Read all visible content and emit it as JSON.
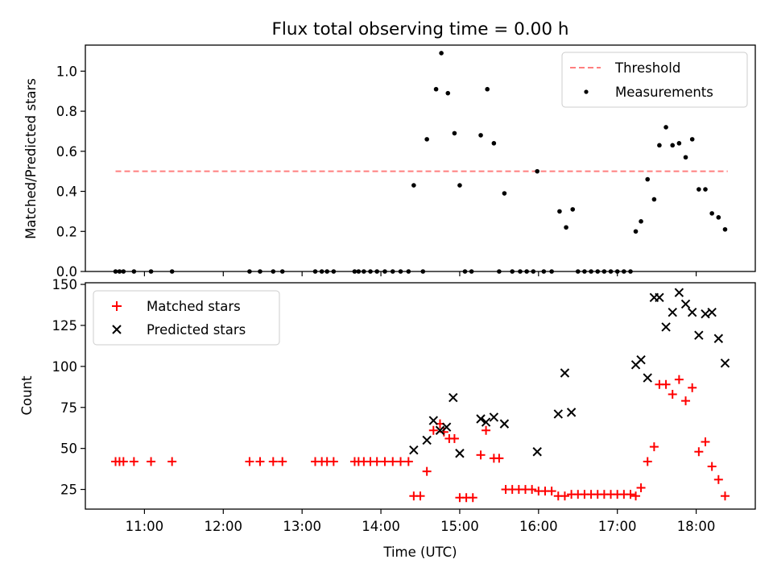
{
  "title": "Flux total observing time = 0.00 h",
  "colors": {
    "threshold": "#ff7f7f",
    "measurement": "#000000",
    "matched": "#ff0000",
    "predicted": "#000000"
  },
  "chart_data": [
    {
      "type": "scatter",
      "panel": "top",
      "ylabel": "Matched/Predicted stars",
      "xlabel": "",
      "xlim": [
        "10:15",
        "18:45"
      ],
      "ylim": [
        0,
        1.13
      ],
      "yticks": [
        "0.0",
        "0.2",
        "0.4",
        "0.6",
        "0.8",
        "1.0"
      ],
      "xticks": [
        "11:00",
        "12:00",
        "13:00",
        "14:00",
        "15:00",
        "16:00",
        "17:00",
        "18:00"
      ],
      "legend": {
        "position": "top-right",
        "entries": [
          "Threshold",
          "Measurements"
        ]
      },
      "threshold": {
        "name": "Threshold",
        "y": 0.5,
        "x_range": [
          "10:38",
          "18:24"
        ]
      },
      "series": [
        {
          "name": "Measurements",
          "points": [
            [
              "10:38",
              0
            ],
            [
              "10:41",
              0
            ],
            [
              "10:44",
              0
            ],
            [
              "10:52",
              0
            ],
            [
              "11:05",
              0
            ],
            [
              "11:21",
              0
            ],
            [
              "12:20",
              0
            ],
            [
              "12:28",
              0
            ],
            [
              "12:38",
              0
            ],
            [
              "12:45",
              0
            ],
            [
              "13:10",
              0
            ],
            [
              "13:15",
              0
            ],
            [
              "13:19",
              0
            ],
            [
              "13:24",
              0
            ],
            [
              "13:40",
              0
            ],
            [
              "13:43",
              0
            ],
            [
              "13:47",
              0
            ],
            [
              "13:52",
              0
            ],
            [
              "13:57",
              0
            ],
            [
              "14:03",
              0
            ],
            [
              "14:09",
              0
            ],
            [
              "14:15",
              0
            ],
            [
              "14:21",
              0
            ],
            [
              "14:25",
              0.43
            ],
            [
              "14:32",
              0
            ],
            [
              "14:35",
              0.66
            ],
            [
              "14:42",
              0.91
            ],
            [
              "14:46",
              1.09
            ],
            [
              "14:51",
              0.89
            ],
            [
              "14:56",
              0.69
            ],
            [
              "15:00",
              0.43
            ],
            [
              "15:04",
              0
            ],
            [
              "15:09",
              0
            ],
            [
              "15:16",
              0.68
            ],
            [
              "15:21",
              0.91
            ],
            [
              "15:26",
              0.64
            ],
            [
              "15:30",
              0
            ],
            [
              "15:34",
              0.39
            ],
            [
              "15:40",
              0
            ],
            [
              "15:46",
              0
            ],
            [
              "15:51",
              0
            ],
            [
              "15:56",
              0
            ],
            [
              "15:59",
              0.5
            ],
            [
              "16:04",
              0
            ],
            [
              "16:10",
              0
            ],
            [
              "16:16",
              0.3
            ],
            [
              "16:21",
              0.22
            ],
            [
              "16:26",
              0.31
            ],
            [
              "16:30",
              0
            ],
            [
              "16:35",
              0
            ],
            [
              "16:40",
              0
            ],
            [
              "16:45",
              0
            ],
            [
              "16:50",
              0
            ],
            [
              "16:55",
              0
            ],
            [
              "17:00",
              0
            ],
            [
              "17:05",
              0
            ],
            [
              "17:10",
              0
            ],
            [
              "17:14",
              0.2
            ],
            [
              "17:18",
              0.25
            ],
            [
              "17:23",
              0.46
            ],
            [
              "17:28",
              0.36
            ],
            [
              "17:32",
              0.63
            ],
            [
              "17:37",
              0.72
            ],
            [
              "17:42",
              0.63
            ],
            [
              "17:47",
              0.64
            ],
            [
              "17:52",
              0.57
            ],
            [
              "17:57",
              0.66
            ],
            [
              "18:02",
              0.41
            ],
            [
              "18:07",
              0.41
            ],
            [
              "18:12",
              0.29
            ],
            [
              "18:17",
              0.27
            ],
            [
              "18:22",
              0.21
            ]
          ]
        }
      ]
    },
    {
      "type": "scatter",
      "panel": "bottom",
      "ylabel": "Count",
      "xlabel": "Time (UTC)",
      "xlim": [
        "10:15",
        "18:45"
      ],
      "ylim": [
        13,
        151
      ],
      "yticks": [
        "25",
        "50",
        "75",
        "100",
        "125",
        "150"
      ],
      "xticks": [
        "11:00",
        "12:00",
        "13:00",
        "14:00",
        "15:00",
        "16:00",
        "17:00",
        "18:00"
      ],
      "legend": {
        "position": "top-left",
        "entries": [
          "Matched stars",
          "Predicted stars"
        ]
      },
      "series": [
        {
          "name": "Matched stars",
          "marker": "plus",
          "points": [
            [
              "10:38",
              42
            ],
            [
              "10:41",
              42
            ],
            [
              "10:44",
              42
            ],
            [
              "10:52",
              42
            ],
            [
              "11:05",
              42
            ],
            [
              "11:21",
              42
            ],
            [
              "12:20",
              42
            ],
            [
              "12:28",
              42
            ],
            [
              "12:38",
              42
            ],
            [
              "12:45",
              42
            ],
            [
              "13:10",
              42
            ],
            [
              "13:15",
              42
            ],
            [
              "13:19",
              42
            ],
            [
              "13:24",
              42
            ],
            [
              "13:40",
              42
            ],
            [
              "13:43",
              42
            ],
            [
              "13:47",
              42
            ],
            [
              "13:52",
              42
            ],
            [
              "13:57",
              42
            ],
            [
              "14:03",
              42
            ],
            [
              "14:09",
              42
            ],
            [
              "14:15",
              42
            ],
            [
              "14:21",
              42
            ],
            [
              "14:25",
              21
            ],
            [
              "14:30",
              21
            ],
            [
              "14:35",
              36
            ],
            [
              "14:40",
              61
            ],
            [
              "14:45",
              65
            ],
            [
              "14:48",
              60
            ],
            [
              "14:52",
              56
            ],
            [
              "14:56",
              56
            ],
            [
              "15:00",
              20
            ],
            [
              "15:05",
              20
            ],
            [
              "15:10",
              20
            ],
            [
              "15:16",
              46
            ],
            [
              "15:20",
              61
            ],
            [
              "15:26",
              44
            ],
            [
              "15:30",
              44
            ],
            [
              "15:35",
              25
            ],
            [
              "15:40",
              25
            ],
            [
              "15:45",
              25
            ],
            [
              "15:50",
              25
            ],
            [
              "15:55",
              25
            ],
            [
              "16:00",
              24
            ],
            [
              "16:05",
              24
            ],
            [
              "16:10",
              24
            ],
            [
              "16:15",
              21
            ],
            [
              "16:20",
              21
            ],
            [
              "16:25",
              22
            ],
            [
              "16:30",
              22
            ],
            [
              "16:35",
              22
            ],
            [
              "16:40",
              22
            ],
            [
              "16:45",
              22
            ],
            [
              "16:50",
              22
            ],
            [
              "16:55",
              22
            ],
            [
              "17:00",
              22
            ],
            [
              "17:05",
              22
            ],
            [
              "17:10",
              22
            ],
            [
              "17:14",
              21
            ],
            [
              "17:18",
              26
            ],
            [
              "17:23",
              42
            ],
            [
              "17:28",
              51
            ],
            [
              "17:32",
              89
            ],
            [
              "17:37",
              89
            ],
            [
              "17:42",
              83
            ],
            [
              "17:47",
              92
            ],
            [
              "17:52",
              79
            ],
            [
              "17:57",
              87
            ],
            [
              "18:02",
              48
            ],
            [
              "18:07",
              54
            ],
            [
              "18:12",
              39
            ],
            [
              "18:17",
              31
            ],
            [
              "18:22",
              21
            ]
          ]
        },
        {
          "name": "Predicted stars",
          "marker": "x",
          "points": [
            [
              "14:25",
              49
            ],
            [
              "14:35",
              55
            ],
            [
              "14:40",
              67
            ],
            [
              "14:45",
              61
            ],
            [
              "14:50",
              63
            ],
            [
              "14:55",
              81
            ],
            [
              "15:00",
              47
            ],
            [
              "15:16",
              68
            ],
            [
              "15:20",
              66
            ],
            [
              "15:26",
              69
            ],
            [
              "15:34",
              65
            ],
            [
              "15:59",
              48
            ],
            [
              "16:15",
              71
            ],
            [
              "16:20",
              96
            ],
            [
              "16:25",
              72
            ],
            [
              "17:14",
              101
            ],
            [
              "17:18",
              104
            ],
            [
              "17:23",
              93
            ],
            [
              "17:28",
              142
            ],
            [
              "17:32",
              142
            ],
            [
              "17:37",
              124
            ],
            [
              "17:42",
              133
            ],
            [
              "17:47",
              145
            ],
            [
              "17:52",
              138
            ],
            [
              "17:57",
              133
            ],
            [
              "18:02",
              119
            ],
            [
              "18:07",
              132
            ],
            [
              "18:12",
              133
            ],
            [
              "18:17",
              117
            ],
            [
              "18:22",
              102
            ]
          ]
        }
      ]
    }
  ]
}
